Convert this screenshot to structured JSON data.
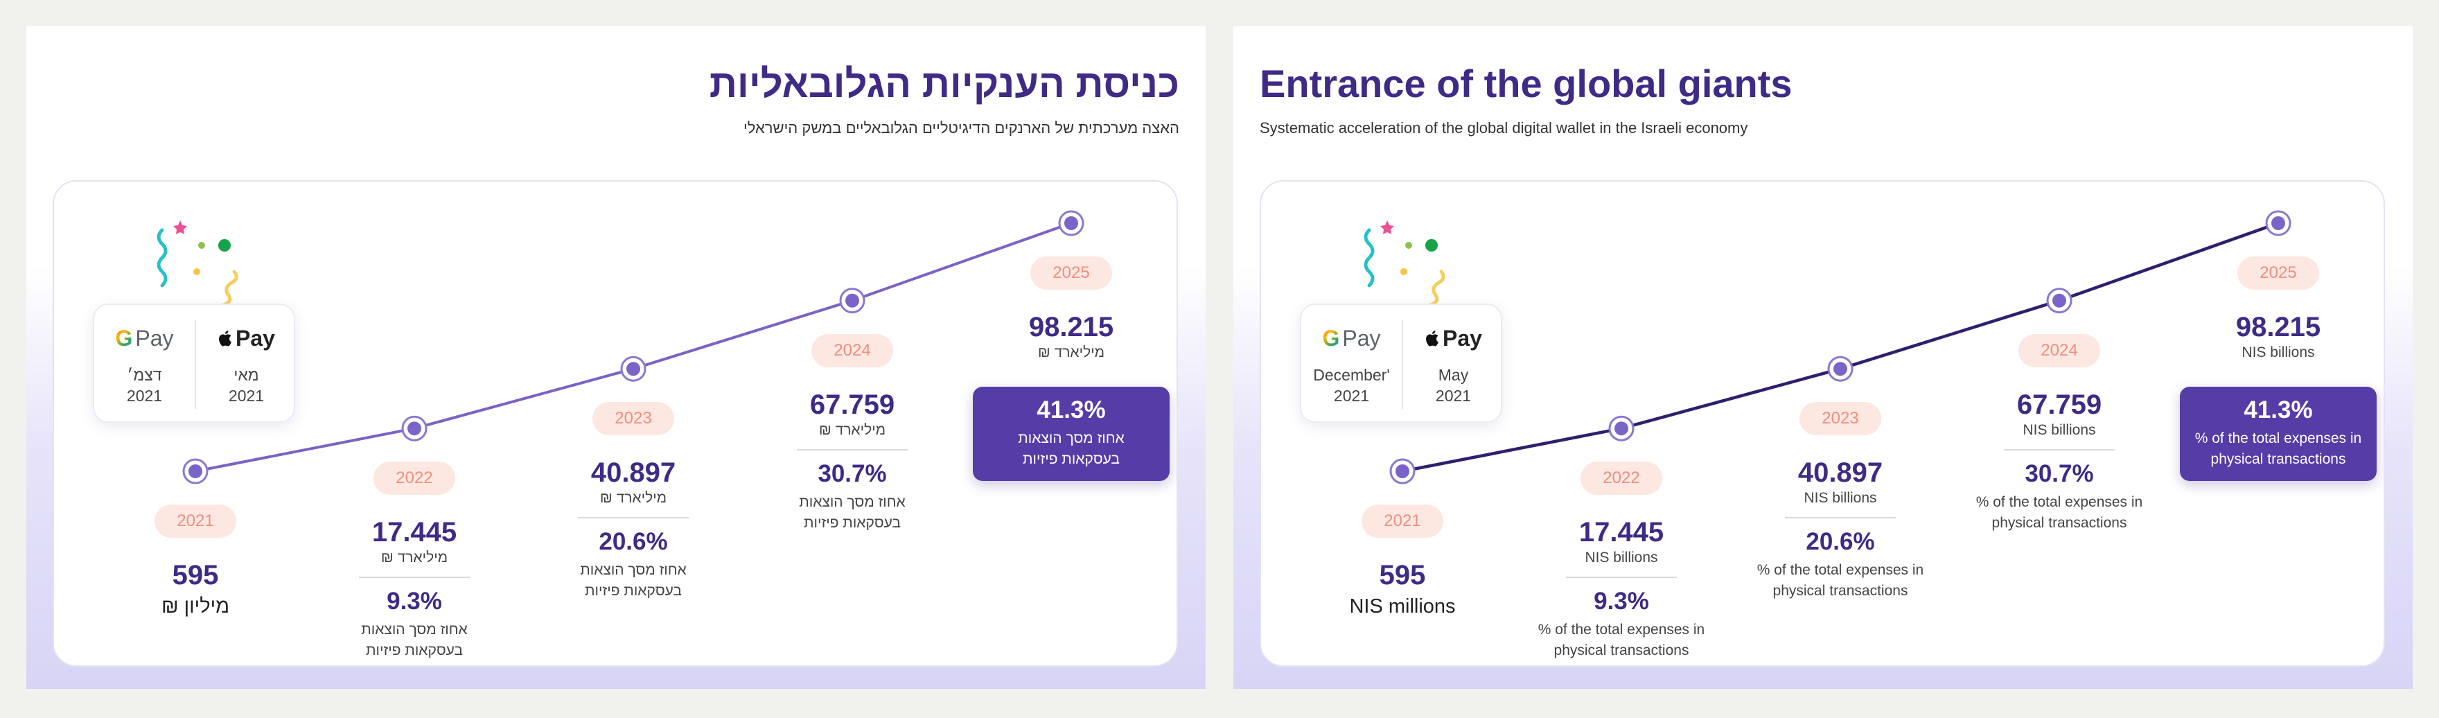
{
  "colors": {
    "title": "#3f2a86",
    "line_he": "#7c62c4",
    "line_en": "#2f1f6e",
    "marker_fill": "#7a64c8",
    "pill_bg": "#fde7e1",
    "pill_text": "#ee8f7f",
    "highlight_bg": "#553ca6"
  },
  "panels": [
    {
      "lang": "he",
      "title": "כניסת הענקיות הגלובאליות",
      "subtitle": "האצה מערכתית של הארנקים הדיגיטליים הגלובאליים במשק הישראלי",
      "pay_boxes": [
        {
          "name": "google-pay",
          "logo_letter": "G",
          "logo_word": "Pay",
          "icon": "google-g-icon",
          "date_line1": "דצמ׳",
          "date_line2": "2021"
        },
        {
          "name": "apple-pay",
          "logo_letter": "",
          "logo_word": "Pay",
          "icon": "apple-icon",
          "date_line1": "מאי",
          "date_line2": "2021"
        }
      ],
      "points": [
        {
          "year": "2021",
          "value": "595",
          "unit": "מיליון ₪",
          "pct": "",
          "pct_label": ""
        },
        {
          "year": "2022",
          "value": "17.445",
          "unit": "מיליארד ₪",
          "pct": "9.3%",
          "pct_label": "אחוז מסך הוצאות בעסקאות פיזיות"
        },
        {
          "year": "2023",
          "value": "40.897",
          "unit": "מיליארד ₪",
          "pct": "20.6%",
          "pct_label": "אחוז מסך הוצאות בעסקאות פיזיות"
        },
        {
          "year": "2024",
          "value": "67.759",
          "unit": "מיליארד ₪",
          "pct": "30.7%",
          "pct_label": "אחוז מסך הוצאות בעסקאות פיזיות"
        },
        {
          "year": "2025",
          "value": "98.215",
          "unit": "מיליארד ₪",
          "pct": "41.3%",
          "pct_label": "אחוז מסך הוצאות בעסקאות פיזיות"
        }
      ]
    },
    {
      "lang": "en",
      "title": "Entrance of the global giants",
      "subtitle": "Systematic acceleration of the global digital wallet in the Israeli economy",
      "pay_boxes": [
        {
          "name": "google-pay",
          "logo_letter": "G",
          "logo_word": "Pay",
          "icon": "google-g-icon",
          "date_line1": "December'",
          "date_line2": "2021"
        },
        {
          "name": "apple-pay",
          "logo_letter": "",
          "logo_word": "Pay",
          "icon": "apple-icon",
          "date_line1": "May",
          "date_line2": "2021"
        }
      ],
      "points": [
        {
          "year": "2021",
          "value": "595",
          "unit": "NIS millions",
          "pct": "",
          "pct_label": ""
        },
        {
          "year": "2022",
          "value": "17.445",
          "unit": "NIS billions",
          "pct": "9.3%",
          "pct_label": "% of the total expenses in physical transactions"
        },
        {
          "year": "2023",
          "value": "40.897",
          "unit": "NIS billions",
          "pct": "20.6%",
          "pct_label": "% of the total expenses in physical transactions"
        },
        {
          "year": "2024",
          "value": "67.759",
          "unit": "NIS billions",
          "pct": "30.7%",
          "pct_label": "% of the total expenses in physical transactions"
        },
        {
          "year": "2025",
          "value": "98.215",
          "unit": "NIS billions",
          "pct": "41.3%",
          "pct_label": "% of the total expenses in physical transactions"
        }
      ]
    }
  ],
  "chart_data": [
    {
      "type": "line",
      "title": "כניסת הענקיות הגלובאליות",
      "subtitle": "האצה מערכתית של הארנקים הדיגיטליים הגלובאליים במשק הישראלי",
      "x": [
        "2021",
        "2022",
        "2023",
        "2024",
        "2025"
      ],
      "series": [
        {
          "values": [
            0.595,
            17.445,
            40.897,
            67.759,
            98.215
          ]
        },
        {
          "values": [
            null,
            9.3,
            20.6,
            30.7,
            41.3
          ]
        }
      ],
      "grid": false
    },
    {
      "type": "line",
      "title": "Entrance of the global giants",
      "subtitle": "Systematic acceleration of the global digital wallet in the Israeli economy",
      "x": [
        "2021",
        "2022",
        "2023",
        "2024",
        "2025"
      ],
      "series": [
        {
          "values": [
            0.595,
            17.445,
            40.897,
            67.759,
            98.215
          ]
        },
        {
          "values": [
            null,
            9.3,
            20.6,
            30.7,
            41.3
          ]
        }
      ],
      "grid": false
    }
  ]
}
